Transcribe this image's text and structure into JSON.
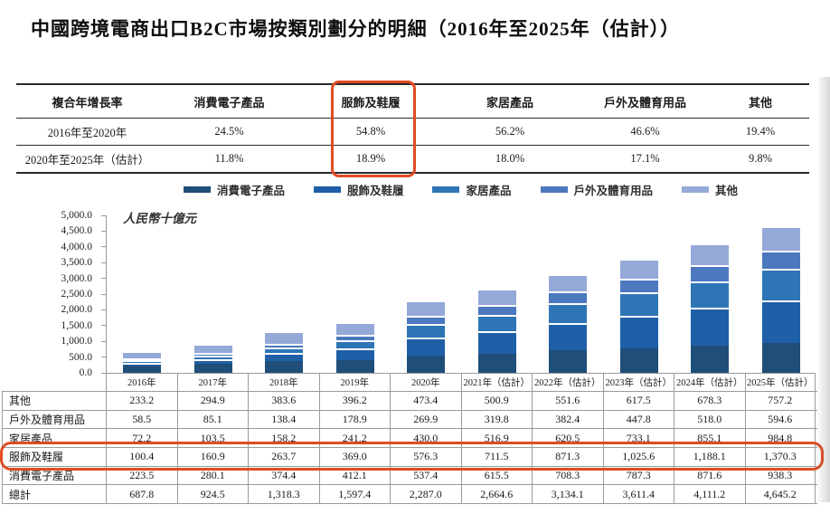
{
  "title": "中國跨境電商出口B2C市場按類別劃分的明細（2016年至2025年（估計））",
  "highlight_color": "#e04b23",
  "cagr_table": {
    "headers": [
      "複合年增長率",
      "消費電子產品",
      "服飾及鞋履",
      "家居產品",
      "戶外及體育用品",
      "其他"
    ],
    "rows": [
      {
        "label": "2016年至2020年",
        "values": [
          "24.5%",
          "54.8%",
          "56.2%",
          "46.6%",
          "19.4%"
        ]
      },
      {
        "label": "2020年至2025年（估計）",
        "values": [
          "11.8%",
          "18.9%",
          "18.0%",
          "17.1%",
          "9.8%"
        ]
      }
    ],
    "highlight_column": "服飾及鞋履"
  },
  "chart_data": {
    "type": "bar",
    "stacked": true,
    "title": "中國跨境電商出口B2C市場按類別劃分的明細（2016年至2025年（估計））",
    "unit_label": "人民幣十億元",
    "xlabel": "",
    "ylabel": "人民幣十億元",
    "ylim": [
      0,
      5000
    ],
    "ytick_step": 500,
    "ytick_labels": [
      "5,000.0",
      "4,500.0",
      "4,000.0",
      "3,500.0",
      "3,000.0",
      "2,500.0",
      "2,000.0",
      "1,500.0",
      "1,000.0",
      "500.0",
      "0.0"
    ],
    "gridlines": false,
    "legend_position": "top",
    "categories": [
      "2016年",
      "2017年",
      "2018年",
      "2019年",
      "2020年",
      "2021年（估計）",
      "2022年（估計）",
      "2023年（估計）",
      "2024年（估計）",
      "2025年（估計）"
    ],
    "series": [
      {
        "name": "消費電子產品",
        "color": "#1f4e79",
        "values": [
          223.5,
          280.1,
          374.4,
          412.1,
          537.4,
          615.5,
          708.3,
          787.3,
          871.6,
          938.3
        ]
      },
      {
        "name": "服飾及鞋履",
        "color": "#1e5fa8",
        "values": [
          100.4,
          160.9,
          263.7,
          369.0,
          576.3,
          711.5,
          871.3,
          1025.6,
          1188.1,
          1370.3
        ]
      },
      {
        "name": "家居產品",
        "color": "#2e75b6",
        "values": [
          72.2,
          103.5,
          158.2,
          241.2,
          430.0,
          516.9,
          620.5,
          733.1,
          855.1,
          984.8
        ]
      },
      {
        "name": "戶外及體育用品",
        "color": "#4c78be",
        "values": [
          58.5,
          85.1,
          138.4,
          178.9,
          269.9,
          319.8,
          382.4,
          447.8,
          518.0,
          594.6
        ]
      },
      {
        "name": "其他",
        "color": "#95a9d8",
        "values": [
          233.2,
          294.9,
          383.6,
          396.2,
          473.4,
          500.9,
          551.6,
          617.5,
          678.3,
          757.2
        ]
      }
    ],
    "totals": [
      687.8,
      924.5,
      1318.3,
      1597.4,
      2287.0,
      2664.6,
      3134.1,
      3611.4,
      4111.2,
      4645.2
    ]
  },
  "data_table": {
    "col_headers": [
      "2016年",
      "2017年",
      "2018年",
      "2019年",
      "2020年",
      "2021年（估計）",
      "2022年（估計）",
      "2023年（估計）",
      "2024年（估計）",
      "2025年（估計）"
    ],
    "rows": [
      {
        "label": "其他",
        "values": [
          "233.2",
          "294.9",
          "383.6",
          "396.2",
          "473.4",
          "500.9",
          "551.6",
          "617.5",
          "678.3",
          "757.2"
        ]
      },
      {
        "label": "戶外及體育用品",
        "values": [
          "58.5",
          "85.1",
          "138.4",
          "178.9",
          "269.9",
          "319.8",
          "382.4",
          "447.8",
          "518.0",
          "594.6"
        ]
      },
      {
        "label": "家居產品",
        "values": [
          "72.2",
          "103.5",
          "158.2",
          "241.2",
          "430.0",
          "516.9",
          "620.5",
          "733.1",
          "855.1",
          "984.8"
        ]
      },
      {
        "label": "服飾及鞋履",
        "values": [
          "100.4",
          "160.9",
          "263.7",
          "369.0",
          "576.3",
          "711.5",
          "871.3",
          "1,025.6",
          "1,188.1",
          "1,370.3"
        ]
      },
      {
        "label": "消費電子產品",
        "values": [
          "223.5",
          "280.1",
          "374.4",
          "412.1",
          "537.4",
          "615.5",
          "708.3",
          "787.3",
          "871.6",
          "938.3"
        ]
      },
      {
        "label": "總計",
        "values": [
          "687.8",
          "924.5",
          "1,318.3",
          "1,597.4",
          "2,287.0",
          "2,664.6",
          "3,134.1",
          "3,611.4",
          "4,111.2",
          "4,645.2"
        ]
      }
    ],
    "highlight_row": "服飾及鞋履"
  }
}
